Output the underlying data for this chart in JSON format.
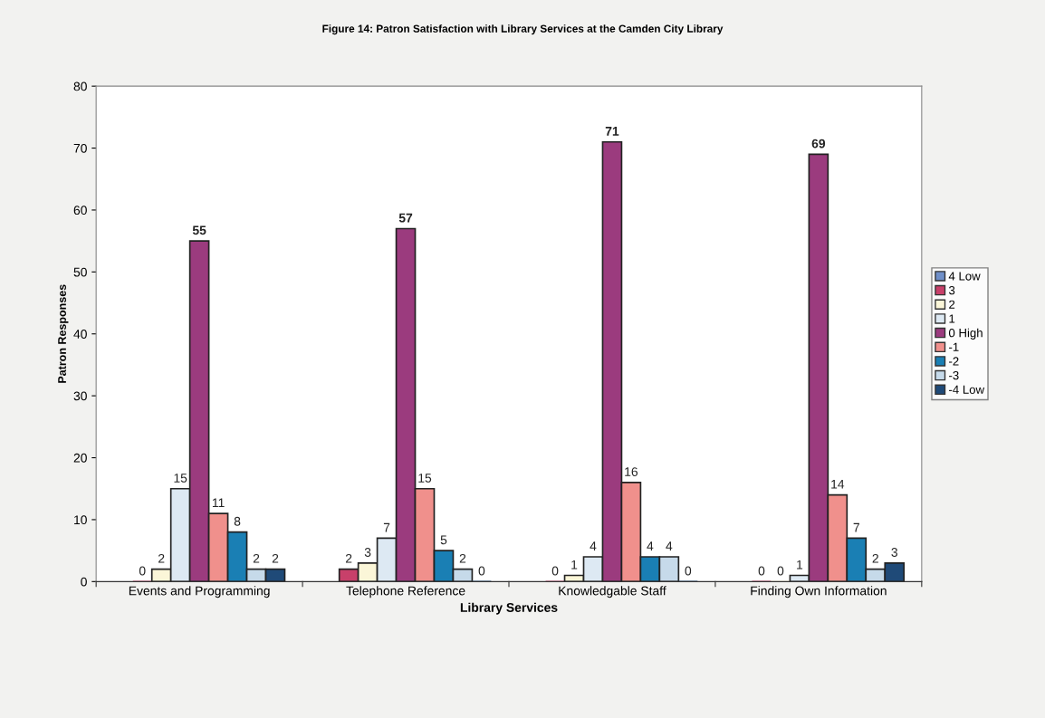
{
  "chart_data": {
    "type": "bar",
    "title": "Figure 14: Patron Satisfaction with Library Services at the Camden City Library",
    "xlabel": "Library Services",
    "ylabel": "Patron Responses",
    "categories": [
      "Events and Programming",
      "Telephone Reference",
      "Knowledgable Staff",
      "Finding Own Information"
    ],
    "series": [
      {
        "name": "4 Low",
        "color": "#6f8fc8",
        "values": [
          null,
          null,
          null,
          null
        ]
      },
      {
        "name": "3",
        "color": "#c8406a",
        "values": [
          0,
          2,
          0,
          0
        ]
      },
      {
        "name": "2",
        "color": "#fbf6d8",
        "values": [
          2,
          3,
          1,
          0
        ]
      },
      {
        "name": "1",
        "color": "#dde9f3",
        "values": [
          15,
          7,
          4,
          1
        ]
      },
      {
        "name": "0 High",
        "color": "#9b3b7e",
        "values": [
          55,
          57,
          71,
          69
        ]
      },
      {
        "name": "-1",
        "color": "#f0908c",
        "values": [
          11,
          15,
          16,
          14
        ]
      },
      {
        "name": "-2",
        "color": "#1a7fb4",
        "values": [
          8,
          5,
          4,
          7
        ]
      },
      {
        "name": "-3",
        "color": "#c6daea",
        "values": [
          2,
          2,
          4,
          2
        ]
      },
      {
        "name": "-4 Low",
        "color": "#1f4a78",
        "values": [
          2,
          0,
          0,
          3
        ]
      }
    ],
    "ylim": [
      0,
      80
    ],
    "yticks": [
      0,
      10,
      20,
      30,
      40,
      50,
      60,
      70,
      80
    ],
    "grid": false,
    "legend": "right",
    "data_labels": true
  }
}
